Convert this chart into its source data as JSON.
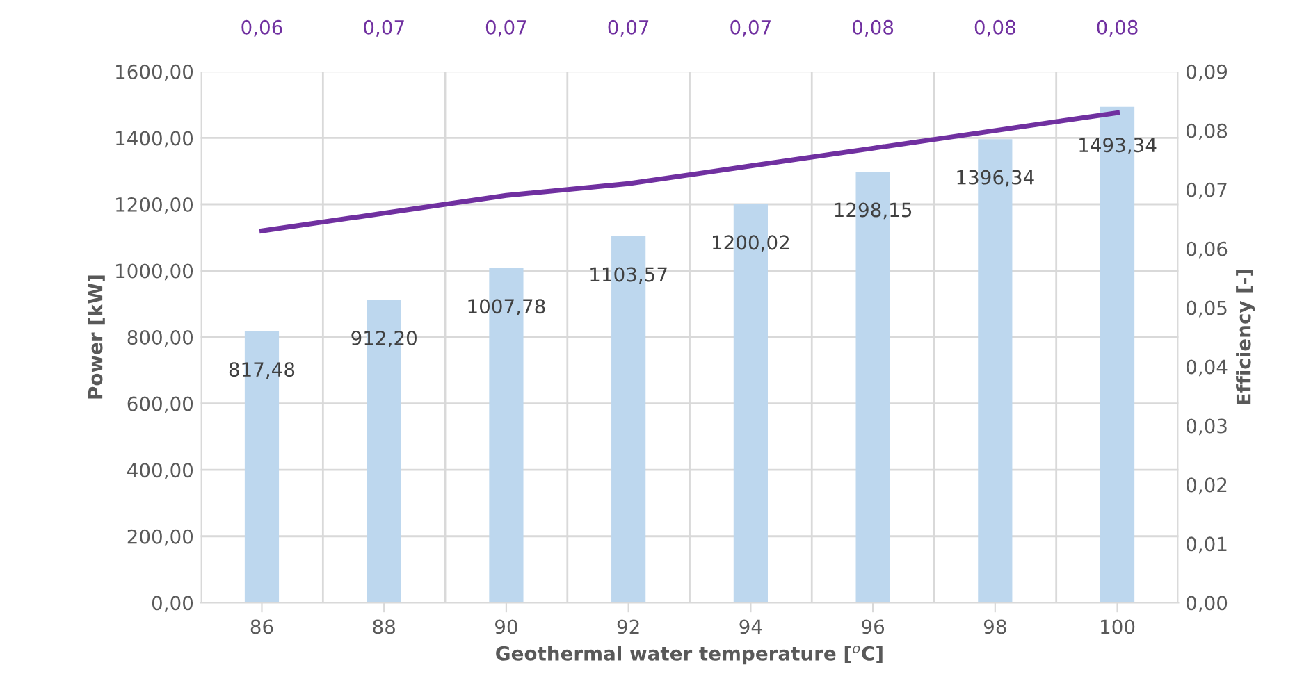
{
  "chart_data": {
    "type": "bar",
    "xlabel": "Geothermal water temperature [$^{o}$C]",
    "ylabel": "Power [kW]",
    "y2label": "Efficiency [-]",
    "categories": [
      "86",
      "88",
      "90",
      "92",
      "94",
      "96",
      "98",
      "100"
    ],
    "series": [
      {
        "color": "#bdd7ee",
        "values": [
          817.48,
          912.2,
          1007.78,
          1103.57,
          1200.02,
          1298.15,
          1396.34,
          1493.34
        ],
        "value_labels": [
          "817,48",
          "912,20",
          "1007,78",
          "1103,57",
          "1200,02",
          "1298,15",
          "1396,34",
          "1493,34"
        ]
      },
      {
        "type": "line",
        "axis": "y2",
        "color": "#7030a0",
        "values": [
          0.063,
          0.066,
          0.069,
          0.071,
          0.074,
          0.077,
          0.08,
          0.083
        ],
        "value_labels": [
          "0,06",
          "0,07",
          "0,07",
          "0,07",
          "0,07",
          "0,08",
          "0,08",
          "0,08"
        ]
      }
    ],
    "ylim": [
      0,
      1600
    ],
    "yticks": [
      {
        "value": 0,
        "label": "0,00"
      },
      {
        "value": 200,
        "label": "200,00"
      },
      {
        "value": 400,
        "label": "400,00"
      },
      {
        "value": 600,
        "label": "600,00"
      },
      {
        "value": 800,
        "label": "800,00"
      },
      {
        "value": 1000,
        "label": "1000,00"
      },
      {
        "value": 1200,
        "label": "1200,00"
      },
      {
        "value": 1400,
        "label": "1400,00"
      },
      {
        "value": 1600,
        "label": "1600,00"
      }
    ],
    "y2lim": [
      0,
      0.09
    ],
    "y2ticks": [
      {
        "value": 0,
        "label": "0,00"
      },
      {
        "value": 0.01,
        "label": "0,01"
      },
      {
        "value": 0.02,
        "label": "0,02"
      },
      {
        "value": 0.03,
        "label": "0,03"
      },
      {
        "value": 0.04,
        "label": "0,04"
      },
      {
        "value": 0.05,
        "label": "0,05"
      },
      {
        "value": 0.06,
        "label": "0,06"
      },
      {
        "value": 0.07,
        "label": "0,07"
      },
      {
        "value": 0.08,
        "label": "0,08"
      },
      {
        "value": 0.09,
        "label": "0,09"
      }
    ],
    "grid": true,
    "marker": "none",
    "line_style": "solid"
  }
}
